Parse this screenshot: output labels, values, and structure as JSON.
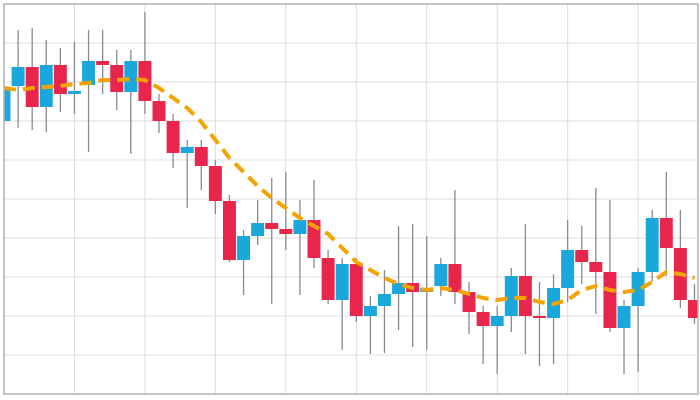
{
  "chart_data": {
    "type": "candlestick",
    "x": [
      0,
      1,
      2,
      3,
      4,
      5,
      6,
      7,
      8,
      9,
      10,
      11,
      12,
      13,
      14,
      15,
      16,
      17,
      18,
      19,
      20,
      21,
      22,
      23,
      24,
      25,
      26,
      27,
      28,
      29,
      30,
      31,
      32,
      33,
      34,
      35,
      36,
      37,
      38,
      39,
      40,
      41,
      42,
      43,
      44,
      45,
      46,
      47,
      48,
      49
    ],
    "open": [
      273,
      308,
      327,
      287,
      329,
      300,
      309,
      333,
      329,
      302,
      333,
      293,
      273,
      241,
      247,
      228,
      193,
      134,
      158,
      171,
      165,
      160,
      174,
      136,
      94,
      130,
      78,
      88,
      100,
      111,
      102,
      108,
      130,
      102,
      82,
      68,
      78,
      118,
      78,
      76,
      106,
      144,
      132,
      122,
      66,
      88,
      122,
      176,
      146,
      94
    ],
    "high": [
      310,
      364,
      366,
      354,
      346,
      352,
      364,
      364,
      344,
      344,
      382,
      300,
      280,
      254,
      254,
      234,
      199,
      164,
      194,
      216,
      222,
      194,
      214,
      144,
      136,
      136,
      98,
      124,
      168,
      170,
      158,
      136,
      204,
      112,
      88,
      88,
      126,
      170,
      112,
      120,
      174,
      168,
      206,
      194,
      94,
      126,
      184,
      222,
      184,
      110
    ],
    "low": [
      270,
      266,
      264,
      262,
      282,
      280,
      242,
      300,
      284,
      240,
      280,
      261,
      226,
      186,
      204,
      180,
      132,
      99,
      149,
      90,
      144,
      99,
      126,
      90,
      44,
      72,
      40,
      41,
      64,
      47,
      44,
      98,
      90,
      60,
      30,
      20,
      62,
      40,
      28,
      30,
      92,
      110,
      80,
      62,
      20,
      22,
      112,
      118,
      86,
      70
    ],
    "close": [
      306,
      327,
      287,
      329,
      300,
      303,
      333,
      329,
      302,
      333,
      293,
      273,
      241,
      247,
      228,
      193,
      134,
      158,
      171,
      165,
      160,
      174,
      136,
      94,
      130,
      78,
      88,
      100,
      111,
      102,
      106,
      130,
      102,
      82,
      68,
      78,
      118,
      78,
      76,
      106,
      144,
      132,
      122,
      66,
      88,
      122,
      176,
      146,
      94,
      76
    ],
    "up_color": "#1aa8dc",
    "down_color": "#e8264b",
    "wick_color": "#8a8a8a",
    "moving_average": {
      "color": "#f5a300",
      "values": [
        306,
        304,
        306,
        307,
        308,
        310,
        311,
        314,
        314,
        315,
        314,
        306,
        296,
        286,
        272,
        254,
        236,
        222,
        208,
        196,
        186,
        176,
        168,
        160,
        146,
        132,
        124,
        116,
        110,
        106,
        104,
        106,
        104,
        100,
        96,
        94,
        96,
        96,
        92,
        90,
        94,
        104,
        108,
        104,
        102,
        104,
        112,
        122,
        120,
        116
      ]
    },
    "xlim": [
      0,
      49.25
    ],
    "xticks": [
      5,
      10,
      15,
      20,
      25,
      30,
      35,
      40,
      45
    ],
    "ylim": [
      0,
      390
    ],
    "yticks": [
      39,
      78,
      117,
      156,
      195,
      234,
      273,
      312,
      351
    ],
    "grid": true
  }
}
